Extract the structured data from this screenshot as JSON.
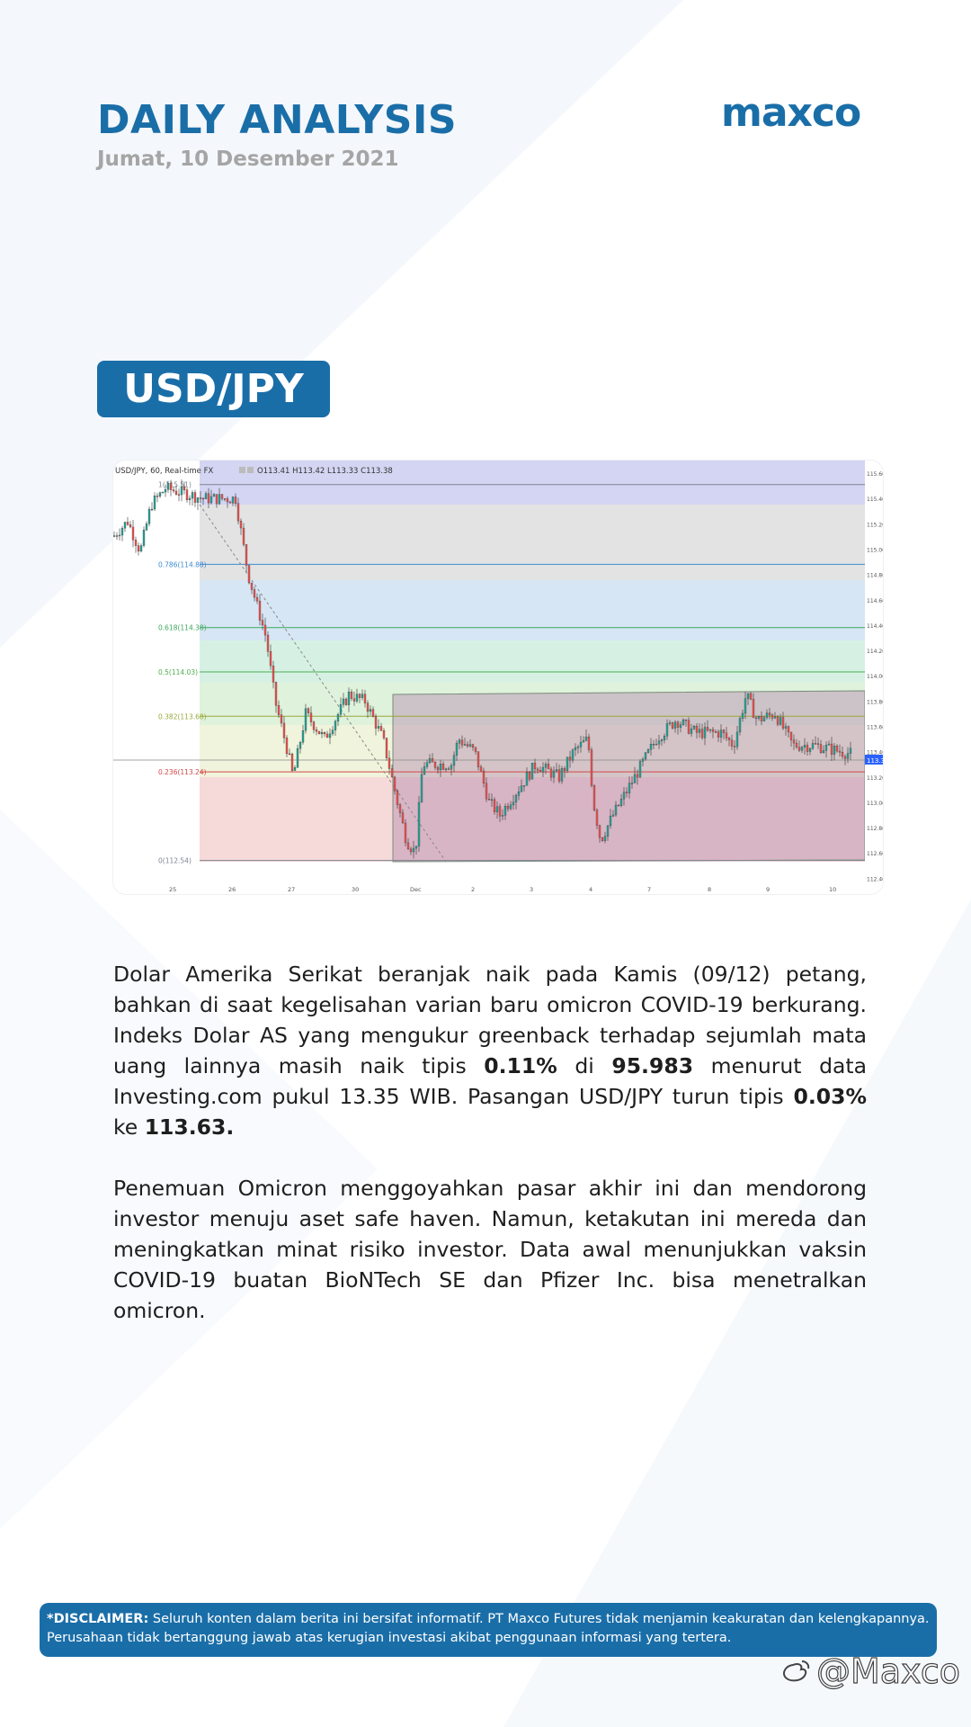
{
  "header": {
    "title": "DAILY ANALYSIS",
    "date": "Jumat, 10 Desember 2021",
    "logo": "maxco"
  },
  "pair": "USD/JPY",
  "chart": {
    "symbol_line": "USD/JPY, 60, Real-time FX",
    "ohlc": "O113.41  H113.42  L113.33  C113.38",
    "last_price": "113.38",
    "fib_levels": [
      {
        "label": "1(115.51)",
        "value": 115.51,
        "color": "#7d8591"
      },
      {
        "label": "0.786(114.88)",
        "value": 114.88,
        "color": "#3e8ad0"
      },
      {
        "label": "0.618(114.38)",
        "value": 114.38,
        "color": "#3ca85c"
      },
      {
        "label": "0.5(114.03)",
        "value": 114.03,
        "color": "#4caf50"
      },
      {
        "label": "0.382(113.68)",
        "value": 113.68,
        "color": "#9aa83c"
      },
      {
        "label": "0.236(113.24)",
        "value": 113.24,
        "color": "#d34848"
      },
      {
        "label": "0(112.54)",
        "value": 112.54,
        "color": "#7d8591"
      }
    ],
    "y_ticks": [
      "115.60",
      "115.40",
      "115.20",
      "115.00",
      "114.80",
      "114.60",
      "114.40",
      "114.20",
      "114.00",
      "113.80",
      "113.60",
      "113.40",
      "113.20",
      "113.00",
      "112.80",
      "112.60",
      "112.40"
    ],
    "x_ticks": [
      "25",
      "26",
      "27",
      "30",
      "Dec",
      "2",
      "3",
      "4",
      "7",
      "8",
      "9",
      "10"
    ],
    "colors": {
      "up": "#26a69a",
      "down": "#ef5350",
      "accent": "#1a6ea8"
    }
  },
  "paragraphs": [
    {
      "runs": [
        {
          "t": "Dolar Amerika Serikat beranjak naik pada Kamis (09/12) petang, bahkan di saat kegelisahan varian baru omicron COVID-19 berkurang. Indeks Dolar AS yang mengukur greenback terhadap sejumlah mata uang lainnya masih naik tipis ",
          "b": false
        },
        {
          "t": "0.11%",
          "b": true
        },
        {
          "t": " di ",
          "b": false
        },
        {
          "t": "95.983",
          "b": true
        },
        {
          "t": " menurut data Investing.com pukul 13.35 WIB. Pasangan USD/JPY turun tipis ",
          "b": false
        },
        {
          "t": "0.03%",
          "b": true
        },
        {
          "t": " ke ",
          "b": false
        },
        {
          "t": "113.63.",
          "b": true
        }
      ]
    },
    {
      "runs": [
        {
          "t": "Penemuan Omicron menggoyahkan pasar akhir ini dan mendorong investor menuju aset safe haven. Namun, ketakutan ini mereda dan meningkatkan minat risiko investor. Data awal menunjukkan vaksin COVID-19 buatan BioNTech SE dan Pfizer Inc. bisa menetralkan omicron.",
          "b": false
        }
      ]
    }
  ],
  "disclaimer": {
    "label": "*DISCLAIMER:",
    "text": " Seluruh konten dalam berita ini bersifat informatif. PT Maxco Futures tidak menjamin keakuratan dan kelengkapannya. Perusahaan tidak bertanggung jawab atas kerugian investasi akibat penggunaan informasi yang tertera."
  },
  "watermark": "@Maxco"
}
